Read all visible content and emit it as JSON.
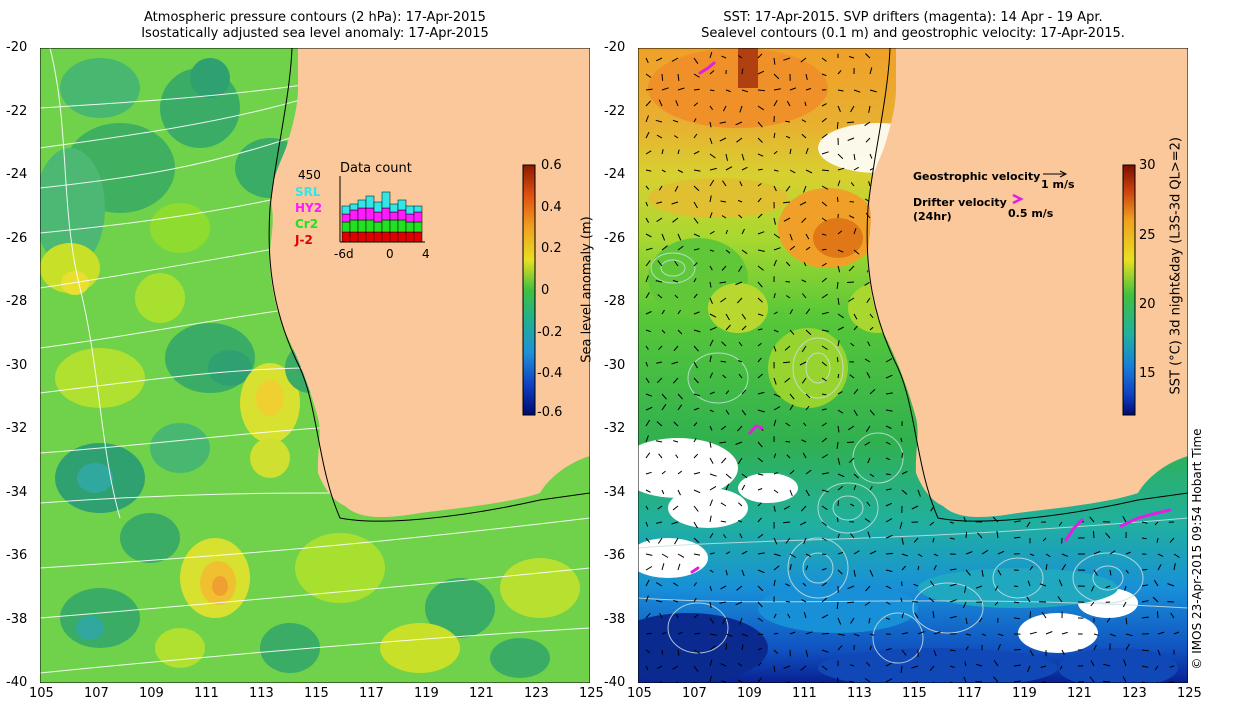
{
  "left_panel": {
    "title_line1": "Atmospheric pressure contours (2 hPa): 17-Apr-2015",
    "title_line2": "Isostatically adjusted sea level anomaly: 17-Apr-2015",
    "colorbar": {
      "label": "Sea level anomaly (m)",
      "ticks": [
        "0.6",
        "0.4",
        "0.2",
        "0",
        "-0.2",
        "-0.4",
        "-0.6"
      ],
      "range": [
        -0.6,
        0.6
      ]
    },
    "inset": {
      "title": "Data count",
      "max_label": "450",
      "legend": [
        {
          "label": "SRL",
          "color": "#33e6e6"
        },
        {
          "label": "HY2",
          "color": "#ff1aff"
        },
        {
          "label": "Cr2",
          "color": "#22e022"
        },
        {
          "label": "J-2",
          "color": "#e00000"
        }
      ],
      "x_ticks": [
        "-6d",
        "0",
        "4"
      ]
    }
  },
  "right_panel": {
    "title_line1": "SST: 17-Apr-2015. SVP drifters (magenta): 14 Apr - 19 Apr.",
    "title_line2": "Sealevel contours (0.1 m) and geostrophic velocity: 17-Apr-2015.",
    "colorbar": {
      "label": "SST (°C) 3d night&day (L3S-3d QL>=2)",
      "ticks": [
        "30",
        "25",
        "20",
        "15"
      ],
      "range": [
        12,
        30
      ]
    },
    "legend": {
      "geo_label": "Geostrophic velocity",
      "geo_scale": "1 m/s",
      "drift_label_1": "Drifter velocity",
      "drift_label_2": "(24hr)",
      "drift_scale": "0.5 m/s"
    }
  },
  "axes": {
    "lat_ticks": [
      "-20",
      "-22",
      "-24",
      "-26",
      "-28",
      "-30",
      "-32",
      "-34",
      "-36",
      "-38",
      "-40"
    ],
    "lon_ticks": [
      "105",
      "107",
      "109",
      "111",
      "113",
      "115",
      "117",
      "119",
      "121",
      "123",
      "125"
    ]
  },
  "credit": "© IMOS 23-Apr-2015 09:54 Hobart Time",
  "colors": {
    "land": "#fac89a",
    "sla_base": "#6fd24a",
    "sst_south": "#22b8a8",
    "magenta": "#e020e0"
  }
}
